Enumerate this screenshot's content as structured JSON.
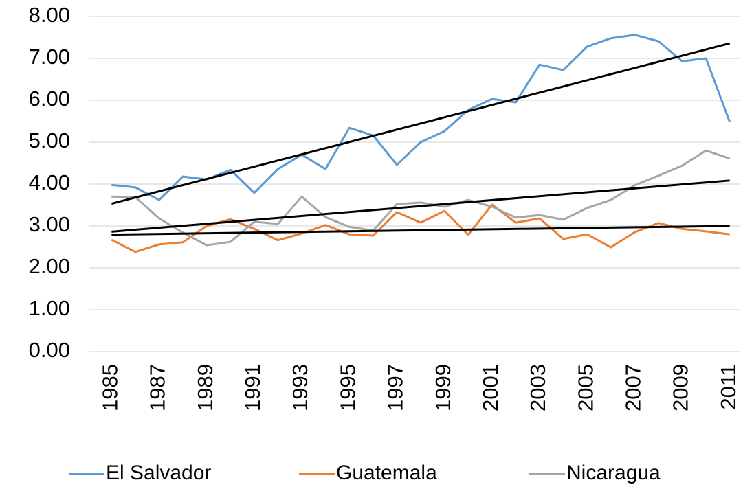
{
  "chart_data": {
    "type": "line",
    "categories": [
      "1985",
      null,
      "1987",
      null,
      "1989",
      null,
      "1991",
      null,
      "1993",
      null,
      "1995",
      null,
      "1997",
      null,
      "1999",
      null,
      "2001",
      null,
      "2003",
      null,
      "2005",
      null,
      "2007",
      null,
      "2009",
      null,
      "2011"
    ],
    "series": [
      {
        "name": "El Salvador",
        "color": "#5b9bd5",
        "values": [
          3.98,
          3.92,
          3.62,
          4.18,
          4.11,
          4.34,
          3.79,
          4.36,
          4.7,
          4.36,
          5.34,
          5.16,
          4.46,
          5.0,
          5.26,
          5.77,
          6.03,
          5.95,
          6.85,
          6.72,
          7.28,
          7.48,
          7.56,
          7.41,
          6.93,
          7.0,
          5.48
        ]
      },
      {
        "name": "Guatemala",
        "color": "#ed7d31",
        "values": [
          2.67,
          2.38,
          2.56,
          2.61,
          3.0,
          3.16,
          2.93,
          2.66,
          2.82,
          3.02,
          2.8,
          2.77,
          3.33,
          3.08,
          3.36,
          2.79,
          3.51,
          3.08,
          3.18,
          2.69,
          2.8,
          2.49,
          2.85,
          3.07,
          2.93,
          2.87,
          2.8
        ]
      },
      {
        "name": "Nicaragua",
        "color": "#a5a5a5",
        "values": [
          3.7,
          3.69,
          3.18,
          2.84,
          2.54,
          2.62,
          3.1,
          3.05,
          3.7,
          3.21,
          2.98,
          2.89,
          3.52,
          3.56,
          3.46,
          3.62,
          3.46,
          3.2,
          3.26,
          3.15,
          3.43,
          3.62,
          3.97,
          4.2,
          4.44,
          4.8,
          4.61
        ]
      }
    ],
    "trendline": true,
    "trendline_color": "#000000",
    "ylim": [
      0,
      8
    ],
    "yticks": [
      {
        "value": 0,
        "label": "0.00"
      },
      {
        "value": 1,
        "label": "1.00"
      },
      {
        "value": 2,
        "label": "2.00"
      },
      {
        "value": 3,
        "label": "3.00"
      },
      {
        "value": 4,
        "label": "4.00"
      },
      {
        "value": 5,
        "label": "5.00"
      },
      {
        "value": 6,
        "label": "6.00"
      },
      {
        "value": 7,
        "label": "7.00"
      },
      {
        "value": 8,
        "label": "8.00"
      }
    ],
    "grid": true,
    "legend": "bottom"
  }
}
